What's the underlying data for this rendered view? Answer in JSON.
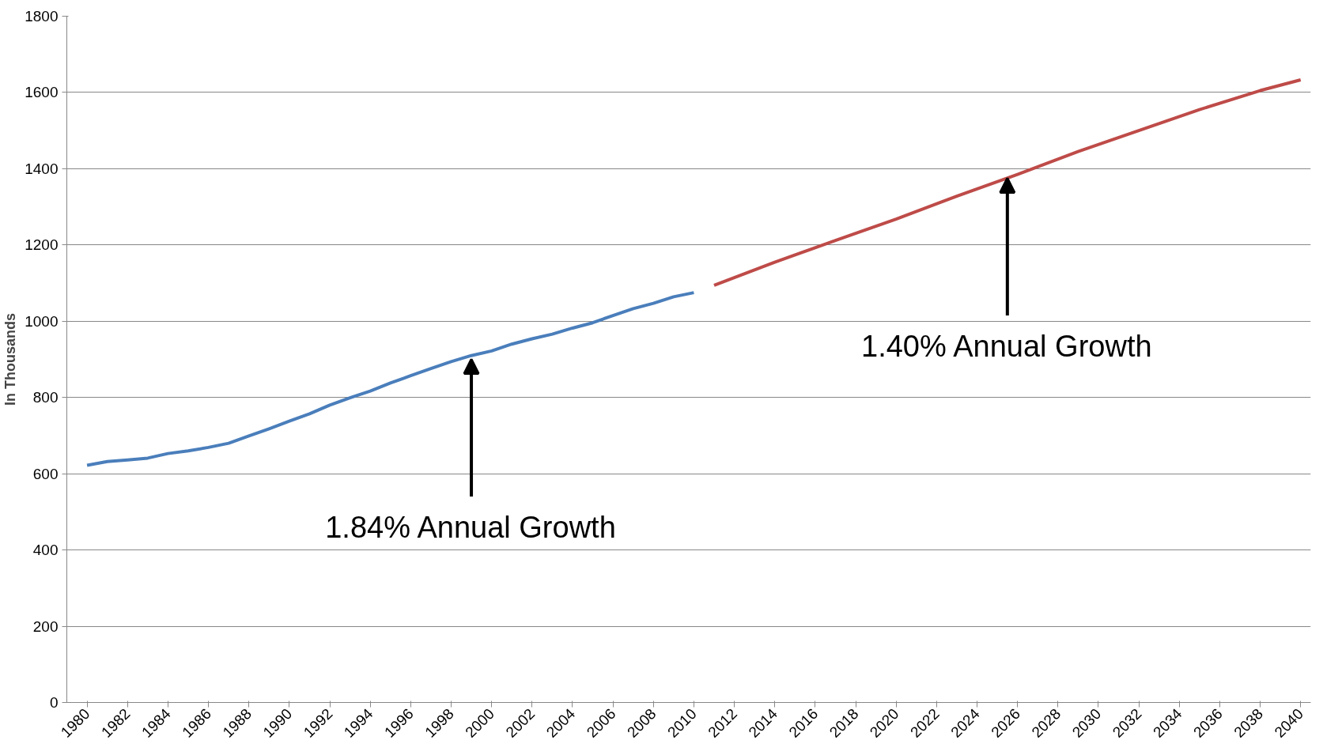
{
  "chart_data": {
    "type": "line",
    "ylabel": "In Thousands",
    "series": [
      {
        "color": "#4a7ebb",
        "x": [
          1980,
          1981,
          1982,
          1983,
          1984,
          1985,
          1986,
          1987,
          1988,
          1989,
          1990,
          1991,
          1992,
          1993,
          1994,
          1995,
          1996,
          1997,
          1998,
          1999,
          2000,
          2001,
          2002,
          2003,
          2004,
          2005,
          2006,
          2007,
          2008,
          2009,
          2010
        ],
        "values": [
          622,
          632,
          636,
          641,
          653,
          660,
          669,
          680,
          699,
          718,
          738,
          757,
          780,
          799,
          817,
          838,
          857,
          876,
          894,
          910,
          922,
          940,
          954,
          966,
          982,
          996,
          1015,
          1033,
          1047,
          1064,
          1075
        ]
      },
      {
        "color": "#be4b48",
        "x": [
          2011,
          2014,
          2017,
          2020,
          2023,
          2026,
          2029,
          2032,
          2035,
          2038,
          2040
        ],
        "values": [
          1094,
          1155,
          1212,
          1268,
          1328,
          1385,
          1445,
          1500,
          1555,
          1605,
          1633
        ]
      }
    ],
    "xlim": [
      1979,
      2040.5
    ],
    "xticks": [
      1980,
      1982,
      1984,
      1986,
      1988,
      1990,
      1992,
      1994,
      1996,
      1998,
      2000,
      2002,
      2004,
      2006,
      2008,
      2010,
      2012,
      2014,
      2016,
      2018,
      2020,
      2022,
      2024,
      2026,
      2028,
      2030,
      2032,
      2034,
      2036,
      2038,
      2040
    ],
    "ylim": [
      0,
      1800
    ],
    "yticks": [
      0,
      200,
      400,
      600,
      800,
      1000,
      1200,
      1400,
      1600,
      1800
    ],
    "grid": "y",
    "marker": "none",
    "line_style": "solid",
    "annotations": [
      {
        "text": "1.84% Annual Growth",
        "x": 1999,
        "y": 900
      },
      {
        "text": "1.40% Annual Growth",
        "x": 2025.5,
        "y": 1375
      }
    ]
  }
}
